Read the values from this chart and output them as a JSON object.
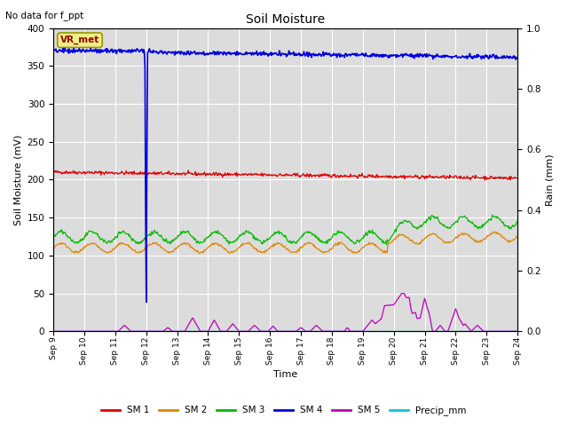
{
  "title": "Soil Moisture",
  "subtitle": "No data for f_ppt",
  "xlabel": "Time",
  "ylabel_left": "Soil Moisture (mV)",
  "ylabel_right": "Rain (mm)",
  "ylim_left": [
    0,
    400
  ],
  "ylim_right": [
    0,
    1.0
  ],
  "background_color": "#dcdcdc",
  "grid_color": "white",
  "x_start": 9,
  "x_end": 24,
  "x_ticks": [
    9,
    10,
    11,
    12,
    13,
    14,
    15,
    16,
    17,
    18,
    19,
    20,
    21,
    22,
    23,
    24
  ],
  "x_tick_labels": [
    "Sep 9",
    "Sep 10",
    "Sep 11",
    "Sep 12",
    "Sep 13",
    "Sep 14",
    "Sep 15",
    "Sep 16",
    "Sep 17",
    "Sep 18",
    "Sep 19",
    "Sep 20",
    "Sep 21",
    "Sep 22",
    "Sep 23",
    "Sep 24"
  ],
  "y_ticks_left": [
    0,
    50,
    100,
    150,
    200,
    250,
    300,
    350,
    400
  ],
  "y_ticks_right": [
    0.0,
    0.2,
    0.4,
    0.6,
    0.8,
    1.0
  ],
  "legend_entries": [
    "SM 1",
    "SM 2",
    "SM 3",
    "SM 4",
    "SM 5",
    "Precip_mm"
  ],
  "legend_colors": [
    "#dd0000",
    "#dd8800",
    "#00bb00",
    "#0000dd",
    "#bb00bb",
    "#00cccc"
  ],
  "vr_met_box_color": "#eeee88",
  "vr_met_text_color": "#990000",
  "sm1_color": "#dd0000",
  "sm2_color": "#dd8800",
  "sm3_color": "#00bb00",
  "sm4_color": "#0000dd",
  "sm5_color": "#bb00bb",
  "precip_color": "#00cccc",
  "figsize": [
    6.4,
    4.8
  ],
  "dpi": 100
}
